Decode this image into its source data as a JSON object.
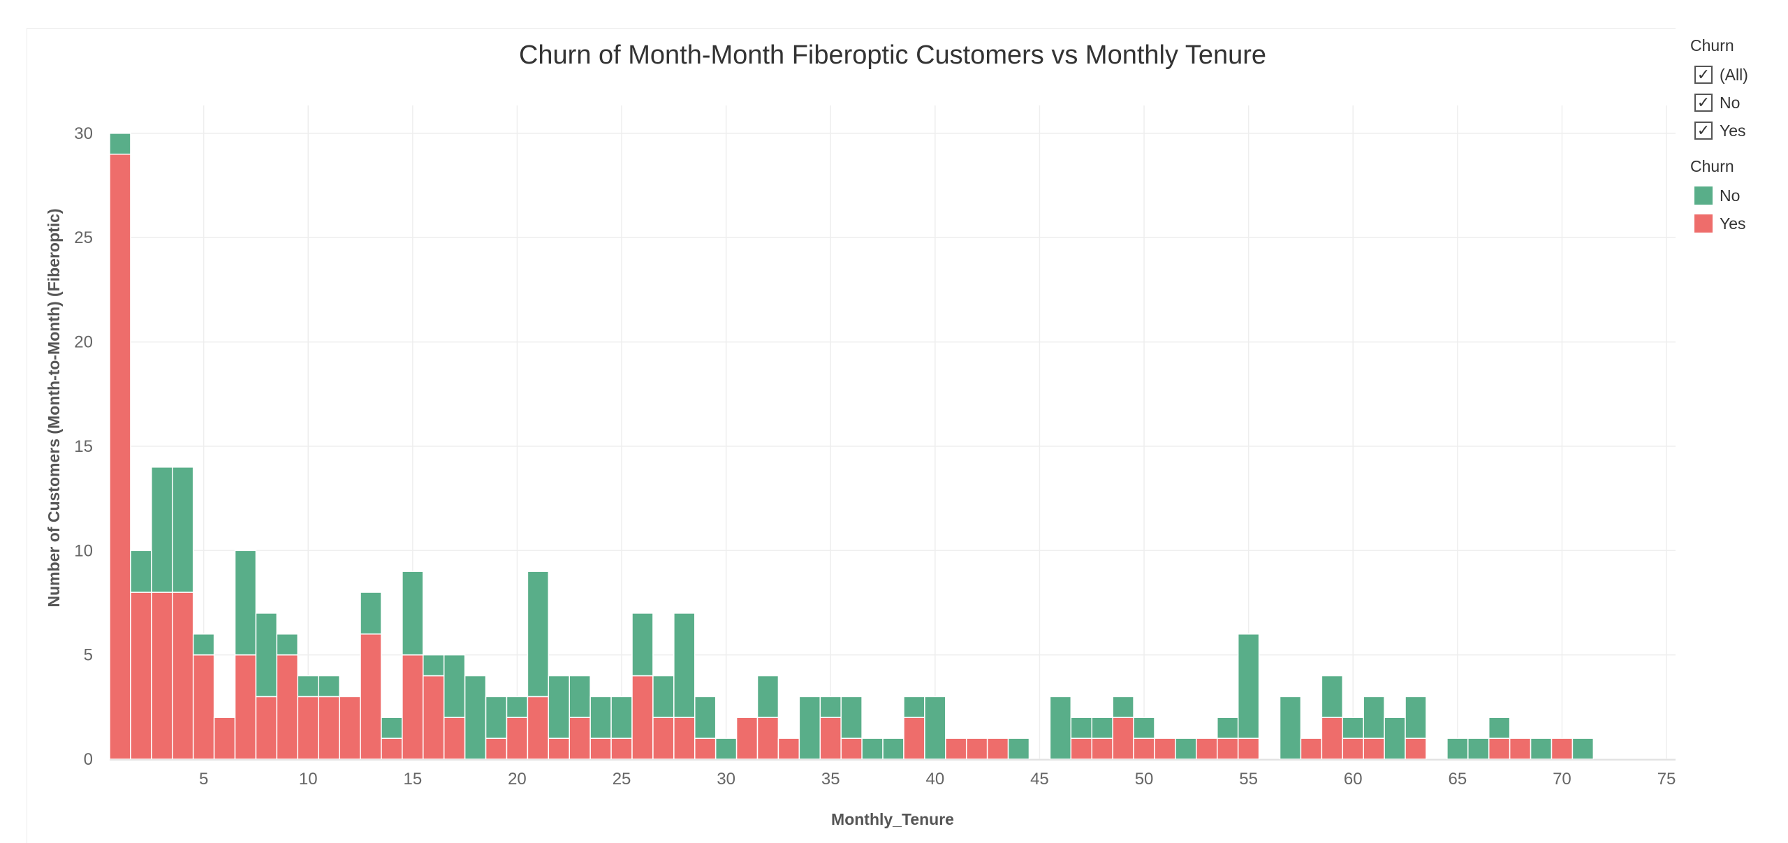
{
  "filter": {
    "title": "Churn",
    "items": [
      {
        "label": "(All)",
        "checked": true
      },
      {
        "label": "No",
        "checked": true
      },
      {
        "label": "Yes",
        "checked": true
      }
    ]
  },
  "legend": {
    "title": "Churn",
    "items": [
      {
        "label": "No",
        "color": "#59ae89"
      },
      {
        "label": "Yes",
        "color": "#ee6d6b"
      }
    ]
  },
  "chart_data": {
    "type": "bar",
    "stacked": true,
    "title": "Churn of Month-Month Fiberoptic Customers vs Monthly Tenure",
    "xlabel": "Monthly_Tenure",
    "ylabel": "Number of Customers (Month-to-Month) (Fiberoptic)",
    "xlim": [
      0.5,
      75.5
    ],
    "ylim": [
      0,
      31
    ],
    "xticks": [
      5,
      10,
      15,
      20,
      25,
      30,
      35,
      40,
      45,
      50,
      55,
      60,
      65,
      70,
      75
    ],
    "yticks": [
      0,
      5,
      10,
      15,
      20,
      25,
      30
    ],
    "grid": true,
    "legend_position": "top-right",
    "x": [
      1,
      2,
      3,
      4,
      5,
      6,
      7,
      8,
      9,
      10,
      11,
      12,
      13,
      14,
      15,
      16,
      17,
      18,
      19,
      20,
      21,
      22,
      23,
      24,
      25,
      26,
      27,
      28,
      29,
      30,
      31,
      32,
      33,
      34,
      35,
      36,
      37,
      38,
      39,
      40,
      41,
      42,
      43,
      44,
      45,
      46,
      47,
      48,
      49,
      50,
      51,
      52,
      53,
      54,
      55,
      56,
      57,
      58,
      59,
      60,
      61,
      62,
      63,
      64,
      65,
      66,
      67,
      68,
      69,
      70,
      71,
      72
    ],
    "series": [
      {
        "name": "Yes",
        "color": "#ee6d6b",
        "values": [
          29,
          8,
          8,
          8,
          5,
          2,
          5,
          3,
          5,
          3,
          3,
          3,
          6,
          1,
          5,
          4,
          2,
          0,
          1,
          2,
          3,
          1,
          2,
          1,
          1,
          4,
          2,
          2,
          1,
          0,
          2,
          2,
          1,
          0,
          2,
          1,
          0,
          0,
          2,
          0,
          1,
          1,
          1,
          0,
          0,
          0,
          1,
          1,
          2,
          1,
          1,
          0,
          1,
          1,
          1,
          0,
          0,
          1,
          2,
          1,
          1,
          0,
          1,
          0,
          0,
          0,
          1,
          1,
          0,
          1,
          0,
          0
        ]
      },
      {
        "name": "No",
        "color": "#59ae89",
        "values": [
          1,
          2,
          6,
          6,
          1,
          0,
          5,
          4,
          1,
          1,
          1,
          0,
          2,
          1,
          4,
          1,
          3,
          4,
          2,
          1,
          6,
          3,
          2,
          2,
          2,
          3,
          2,
          5,
          2,
          1,
          0,
          2,
          0,
          3,
          1,
          2,
          1,
          1,
          1,
          3,
          0,
          0,
          0,
          1,
          0,
          3,
          1,
          1,
          1,
          1,
          0,
          1,
          0,
          1,
          5,
          0,
          3,
          0,
          2,
          1,
          2,
          2,
          2,
          0,
          1,
          1,
          1,
          0,
          1,
          0,
          1,
          0
        ]
      }
    ]
  }
}
